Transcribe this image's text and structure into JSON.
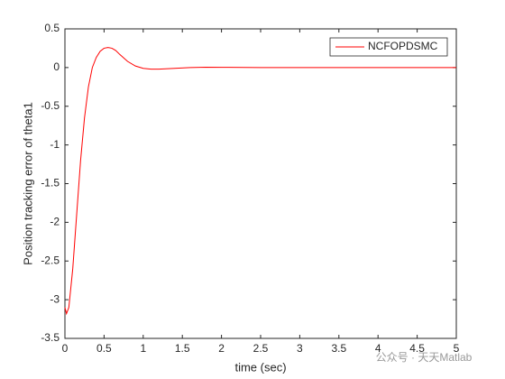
{
  "chart_data": {
    "type": "line",
    "xlabel": "time (sec)",
    "ylabel": "Position tracking error of theta1",
    "x": [
      0,
      0.02,
      0.05,
      0.1,
      0.15,
      0.2,
      0.25,
      0.3,
      0.35,
      0.4,
      0.45,
      0.5,
      0.55,
      0.6,
      0.65,
      0.7,
      0.8,
      0.9,
      1.0,
      1.1,
      1.2,
      1.4,
      1.6,
      1.8,
      2.0,
      2.5,
      3,
      4,
      5
    ],
    "series": [
      {
        "name": "NCFOPDSMC",
        "color": "#ff0000",
        "values": [
          -3.1,
          -3.18,
          -3.1,
          -2.6,
          -1.9,
          -1.2,
          -0.65,
          -0.25,
          0.0,
          0.13,
          0.21,
          0.25,
          0.26,
          0.25,
          0.22,
          0.17,
          0.08,
          0.02,
          -0.01,
          -0.02,
          -0.02,
          -0.01,
          0,
          0.005,
          0.003,
          0,
          0,
          0,
          0
        ]
      }
    ],
    "xlim": [
      0,
      5
    ],
    "xticks": [
      0,
      0.5,
      1,
      1.5,
      2,
      2.5,
      3,
      3.5,
      4,
      4.5,
      5
    ],
    "ylim": [
      -3.5,
      0.5
    ],
    "yticks": [
      -3.5,
      -3,
      -2.5,
      -2,
      -1.5,
      -1,
      -0.5,
      0,
      0.5
    ],
    "grid": false,
    "legend": "northeast",
    "watermark": "公众号 · 天天Matlab"
  }
}
